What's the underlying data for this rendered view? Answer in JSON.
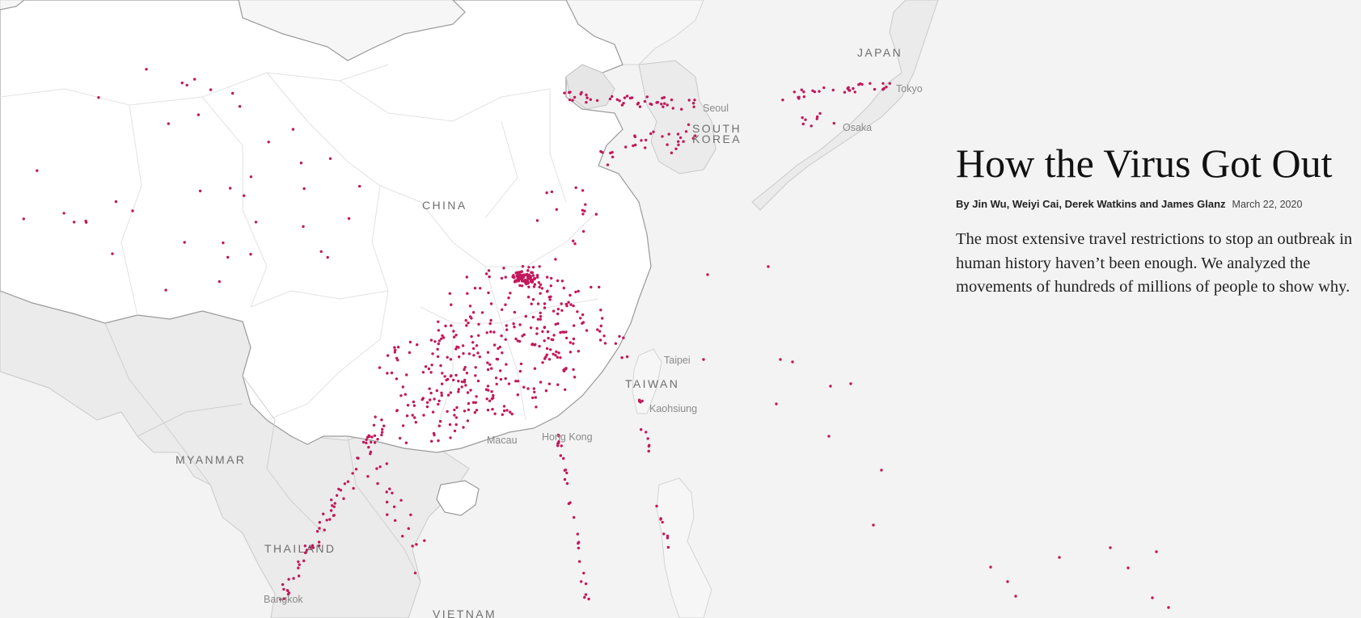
{
  "article": {
    "headline": "How the Virus Got Out",
    "byline": "By Jin Wu, Weiyi Cai, Derek Watkins and James Glanz",
    "date": "March 22, 2020",
    "dek": "The most extensive travel restrictions to stop an outbreak in human history haven’t been enough. We analyzed the movements of hundreds of millions of people to show why."
  },
  "map": {
    "dot_color": "#c2185b",
    "land_color": "#ffffff",
    "background_color": "#f3f3f3",
    "country_labels": [
      "JAPAN",
      "SOUTH",
      "KOREA",
      "CHINA",
      "TAIWAN",
      "MYANMAR",
      "THAILAND",
      "VIETNAM"
    ],
    "city_labels": [
      "Tokyo",
      "Seoul",
      "Osaka",
      "Taipei",
      "Kaohsiung",
      "Macau",
      "Hong Kong",
      "Bangkok"
    ]
  }
}
